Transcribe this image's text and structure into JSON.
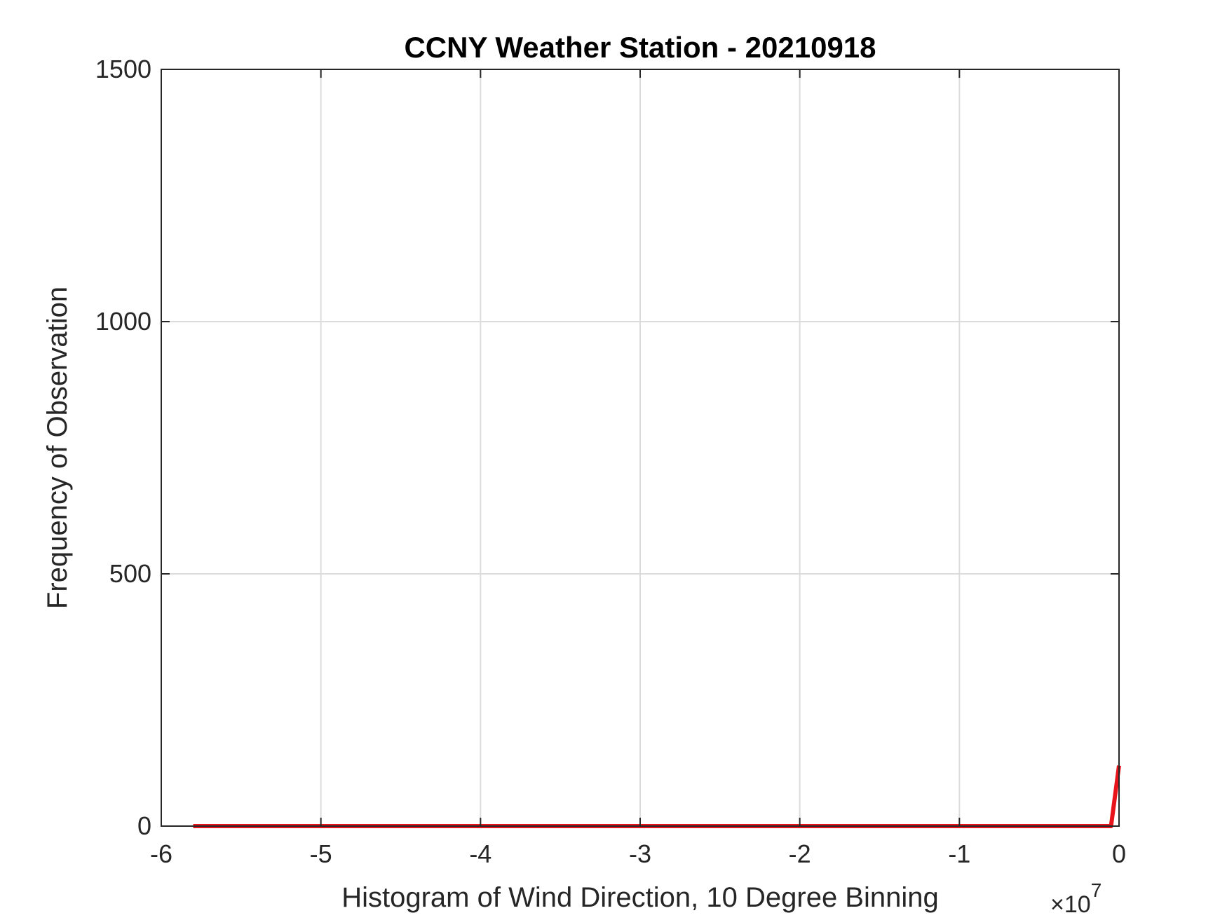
{
  "chart_data": {
    "type": "line",
    "title": "CCNY Weather Station - 20210918",
    "xlabel": "Histogram of Wind Direction, 10 Degree Binning",
    "ylabel": "Frequency of Observation",
    "x_exponent_label": {
      "base": "×10",
      "exponent": "7"
    },
    "xlim": [
      -6,
      0
    ],
    "ylim": [
      0,
      1500
    ],
    "x_ticks": [
      -6,
      -5,
      -4,
      -3,
      -2,
      -1,
      0
    ],
    "x_tick_labels": [
      "-6",
      "-5",
      "-4",
      "-3",
      "-2",
      "-1",
      "0"
    ],
    "y_ticks": [
      0,
      500,
      1000,
      1500
    ],
    "y_tick_labels": [
      "0",
      "500",
      "1000",
      "1500"
    ],
    "grid": true,
    "series": [
      {
        "color": "#e8141b",
        "x": [
          -5.8,
          -0.05,
          0
        ],
        "y": [
          0,
          0,
          120
        ]
      }
    ]
  }
}
